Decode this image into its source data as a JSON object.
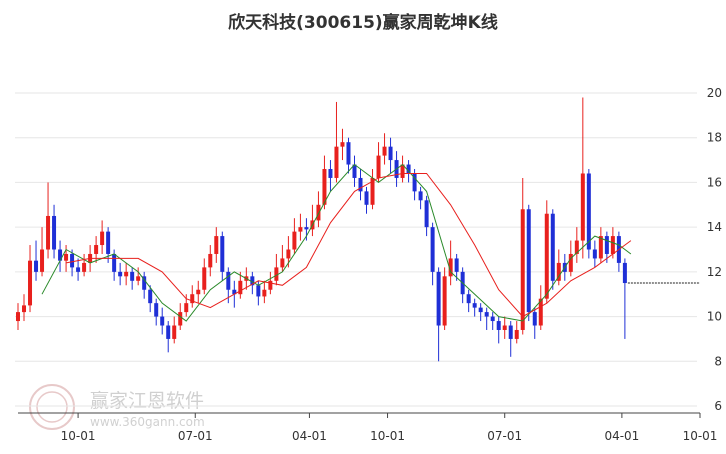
{
  "chart_data": {
    "type": "candlestick",
    "title": "欣天科技(300615)赢家周乾坤K线",
    "watermark": {
      "name": "赢家江恩软件",
      "url": "www.360gann.com"
    },
    "xlim": [
      0,
      227
    ],
    "ylim": [
      6,
      20.3
    ],
    "yticks": [
      6,
      8,
      10,
      12,
      14,
      16,
      18,
      20
    ],
    "xticks": [
      {
        "value": 20,
        "label": "10-01"
      },
      {
        "value": 59,
        "label": "07-01"
      },
      {
        "value": 97,
        "label": "04-01"
      },
      {
        "value": 123,
        "label": "10-01"
      },
      {
        "value": 162,
        "label": "07-01"
      },
      {
        "value": 201,
        "label": "04-01"
      },
      {
        "value": 227,
        "label": "10-01"
      }
    ],
    "grid": true,
    "up_color": "#e8201d",
    "down_color": "#1f2fd6",
    "x": [
      0,
      2,
      4,
      6,
      8,
      10,
      12,
      14,
      16,
      18,
      20,
      22,
      24,
      26,
      28,
      30,
      32,
      34,
      36,
      38,
      40,
      42,
      44,
      46,
      48,
      50,
      52,
      54,
      56,
      58,
      60,
      62,
      64,
      66,
      68,
      70,
      72,
      74,
      76,
      78,
      80,
      82,
      84,
      86,
      88,
      90,
      92,
      94,
      96,
      98,
      100,
      102,
      104,
      106,
      108,
      110,
      112,
      114,
      116,
      118,
      120,
      122,
      124,
      126,
      128,
      130,
      132,
      134,
      136,
      138,
      140,
      142,
      144,
      146,
      148,
      150,
      152,
      154,
      156,
      158,
      160,
      162,
      164,
      166,
      168,
      170,
      172,
      174,
      176,
      178,
      180,
      182,
      184,
      186,
      188,
      190,
      192,
      194,
      196,
      198,
      200,
      202
    ],
    "ohlc": [
      [
        9.8,
        10.6,
        9.4,
        10.2
      ],
      [
        10.2,
        11.0,
        9.8,
        10.5
      ],
      [
        10.5,
        13.2,
        10.2,
        12.5
      ],
      [
        12.5,
        13.4,
        11.6,
        12.0
      ],
      [
        12.0,
        14.0,
        11.8,
        13.0
      ],
      [
        13.0,
        16.0,
        12.6,
        14.5
      ],
      [
        14.5,
        15.0,
        12.6,
        13.0
      ],
      [
        13.0,
        13.4,
        12.0,
        12.5
      ],
      [
        12.5,
        13.2,
        12.0,
        12.8
      ],
      [
        12.8,
        13.0,
        11.8,
        12.2
      ],
      [
        12.2,
        12.6,
        11.6,
        12.0
      ],
      [
        12.0,
        12.8,
        11.8,
        12.4
      ],
      [
        12.4,
        13.2,
        12.0,
        12.8
      ],
      [
        12.8,
        13.6,
        12.4,
        13.2
      ],
      [
        13.2,
        14.3,
        12.8,
        13.8
      ],
      [
        13.8,
        14.0,
        12.4,
        12.8
      ],
      [
        12.8,
        13.0,
        11.6,
        12.0
      ],
      [
        12.0,
        12.4,
        11.4,
        11.8
      ],
      [
        11.8,
        12.4,
        11.4,
        12.0
      ],
      [
        12.0,
        12.2,
        11.2,
        11.6
      ],
      [
        11.6,
        12.2,
        11.4,
        11.8
      ],
      [
        11.8,
        12.0,
        10.8,
        11.2
      ],
      [
        11.2,
        11.4,
        10.2,
        10.6
      ],
      [
        10.6,
        10.8,
        9.6,
        10.0
      ],
      [
        10.0,
        10.4,
        9.2,
        9.6
      ],
      [
        9.6,
        9.8,
        8.4,
        9.0
      ],
      [
        9.0,
        10.0,
        8.8,
        9.6
      ],
      [
        9.6,
        10.6,
        9.4,
        10.2
      ],
      [
        10.2,
        11.0,
        10.0,
        10.6
      ],
      [
        10.6,
        11.4,
        10.4,
        11.0
      ],
      [
        11.0,
        11.6,
        10.6,
        11.2
      ],
      [
        11.2,
        12.6,
        11.0,
        12.2
      ],
      [
        12.2,
        13.2,
        11.8,
        12.8
      ],
      [
        12.8,
        14.0,
        12.4,
        13.6
      ],
      [
        13.6,
        13.8,
        11.6,
        12.0
      ],
      [
        12.0,
        12.2,
        10.6,
        11.2
      ],
      [
        11.2,
        11.6,
        10.4,
        11.0
      ],
      [
        11.0,
        12.0,
        10.8,
        11.6
      ],
      [
        11.6,
        12.2,
        11.2,
        11.8
      ],
      [
        11.8,
        12.0,
        11.0,
        11.4
      ],
      [
        11.4,
        11.6,
        10.5,
        10.9
      ],
      [
        10.9,
        11.6,
        10.6,
        11.2
      ],
      [
        11.2,
        12.0,
        11.0,
        11.6
      ],
      [
        11.6,
        12.8,
        11.4,
        12.2
      ],
      [
        12.2,
        13.2,
        12.0,
        12.6
      ],
      [
        12.6,
        13.6,
        12.2,
        13.0
      ],
      [
        13.0,
        14.4,
        12.8,
        13.8
      ],
      [
        13.8,
        14.6,
        13.4,
        14.0
      ],
      [
        14.0,
        14.4,
        13.4,
        13.9
      ],
      [
        13.9,
        15.0,
        13.6,
        14.3
      ],
      [
        14.3,
        15.6,
        14.0,
        15.0
      ],
      [
        15.0,
        17.2,
        14.8,
        16.6
      ],
      [
        16.6,
        17.0,
        15.6,
        16.2
      ],
      [
        16.2,
        19.6,
        16.0,
        17.6
      ],
      [
        17.6,
        18.4,
        17.0,
        17.8
      ],
      [
        17.8,
        18.0,
        16.4,
        16.8
      ],
      [
        16.8,
        17.2,
        15.8,
        16.2
      ],
      [
        16.2,
        16.6,
        15.2,
        15.6
      ],
      [
        15.6,
        15.8,
        14.6,
        15.0
      ],
      [
        15.0,
        16.6,
        14.8,
        16.2
      ],
      [
        16.2,
        17.8,
        16.0,
        17.2
      ],
      [
        17.2,
        18.2,
        16.8,
        17.6
      ],
      [
        17.6,
        18.0,
        16.4,
        17.0
      ],
      [
        17.0,
        17.4,
        15.8,
        16.2
      ],
      [
        16.2,
        17.2,
        16.0,
        16.8
      ],
      [
        16.8,
        17.0,
        16.0,
        16.4
      ],
      [
        16.4,
        16.6,
        15.2,
        15.6
      ],
      [
        15.6,
        15.8,
        14.8,
        15.2
      ],
      [
        15.2,
        15.4,
        13.6,
        14.0
      ],
      [
        14.0,
        14.2,
        11.4,
        12.0
      ],
      [
        12.0,
        12.2,
        8.0,
        9.6
      ],
      [
        9.6,
        12.2,
        9.4,
        11.8
      ],
      [
        11.8,
        13.4,
        11.4,
        12.6
      ],
      [
        12.6,
        12.8,
        11.6,
        12.0
      ],
      [
        12.0,
        12.2,
        10.6,
        11.0
      ],
      [
        11.0,
        11.2,
        10.2,
        10.6
      ],
      [
        10.6,
        10.8,
        10.0,
        10.4
      ],
      [
        10.4,
        10.6,
        9.8,
        10.2
      ],
      [
        10.2,
        10.4,
        9.4,
        10.0
      ],
      [
        10.0,
        10.2,
        9.4,
        9.8
      ],
      [
        9.8,
        10.0,
        8.8,
        9.4
      ],
      [
        9.4,
        10.0,
        9.0,
        9.6
      ],
      [
        9.6,
        9.8,
        8.2,
        9.0
      ],
      [
        9.0,
        9.8,
        8.8,
        9.4
      ],
      [
        9.4,
        16.2,
        9.2,
        14.8
      ],
      [
        14.8,
        15.0,
        9.8,
        10.2
      ],
      [
        10.2,
        10.4,
        9.0,
        9.6
      ],
      [
        9.6,
        11.4,
        9.4,
        10.8
      ],
      [
        10.8,
        15.2,
        10.6,
        14.6
      ],
      [
        14.6,
        14.8,
        11.2,
        11.6
      ],
      [
        11.6,
        13.0,
        11.4,
        12.4
      ],
      [
        12.4,
        12.8,
        11.6,
        12.0
      ],
      [
        12.0,
        13.4,
        11.8,
        12.8
      ],
      [
        12.8,
        14.0,
        12.4,
        13.4
      ],
      [
        13.4,
        19.8,
        12.6,
        16.4
      ],
      [
        16.4,
        16.6,
        12.6,
        13.0
      ],
      [
        13.0,
        13.4,
        12.2,
        12.6
      ],
      [
        12.6,
        14.0,
        12.4,
        13.6
      ],
      [
        13.6,
        13.8,
        12.4,
        12.8
      ],
      [
        12.8,
        14.0,
        12.6,
        13.6
      ],
      [
        13.6,
        13.8,
        12.0,
        12.4
      ],
      [
        12.4,
        12.6,
        9.0,
        11.5
      ]
    ],
    "lines": [
      {
        "color": "#2a8a2a",
        "x": [
          8,
          16,
          24,
          32,
          40,
          48,
          56,
          64,
          72,
          80,
          88,
          96,
          104,
          112,
          120,
          128,
          136,
          144,
          152,
          160,
          168,
          176,
          184,
          192,
          200,
          204
        ],
        "values": [
          11.0,
          13.0,
          12.4,
          12.8,
          12.0,
          10.6,
          9.8,
          11.2,
          12.0,
          11.4,
          12.0,
          13.6,
          15.6,
          16.8,
          16.0,
          16.8,
          15.6,
          12.0,
          11.0,
          10.0,
          9.8,
          11.0,
          12.6,
          13.6,
          13.2,
          12.8
        ]
      },
      {
        "color": "#e8201d",
        "x": [
          16,
          24,
          32,
          40,
          48,
          56,
          64,
          72,
          80,
          88,
          96,
          104,
          112,
          120,
          128,
          136,
          144,
          152,
          160,
          168,
          176,
          184,
          192,
          200,
          204
        ],
        "values": [
          12.4,
          12.6,
          12.6,
          12.6,
          12.0,
          10.8,
          10.4,
          11.0,
          11.6,
          11.4,
          12.2,
          14.2,
          15.6,
          16.2,
          16.4,
          16.4,
          15.0,
          13.2,
          11.2,
          10.0,
          10.6,
          11.6,
          12.2,
          13.0,
          13.4
        ]
      }
    ]
  }
}
